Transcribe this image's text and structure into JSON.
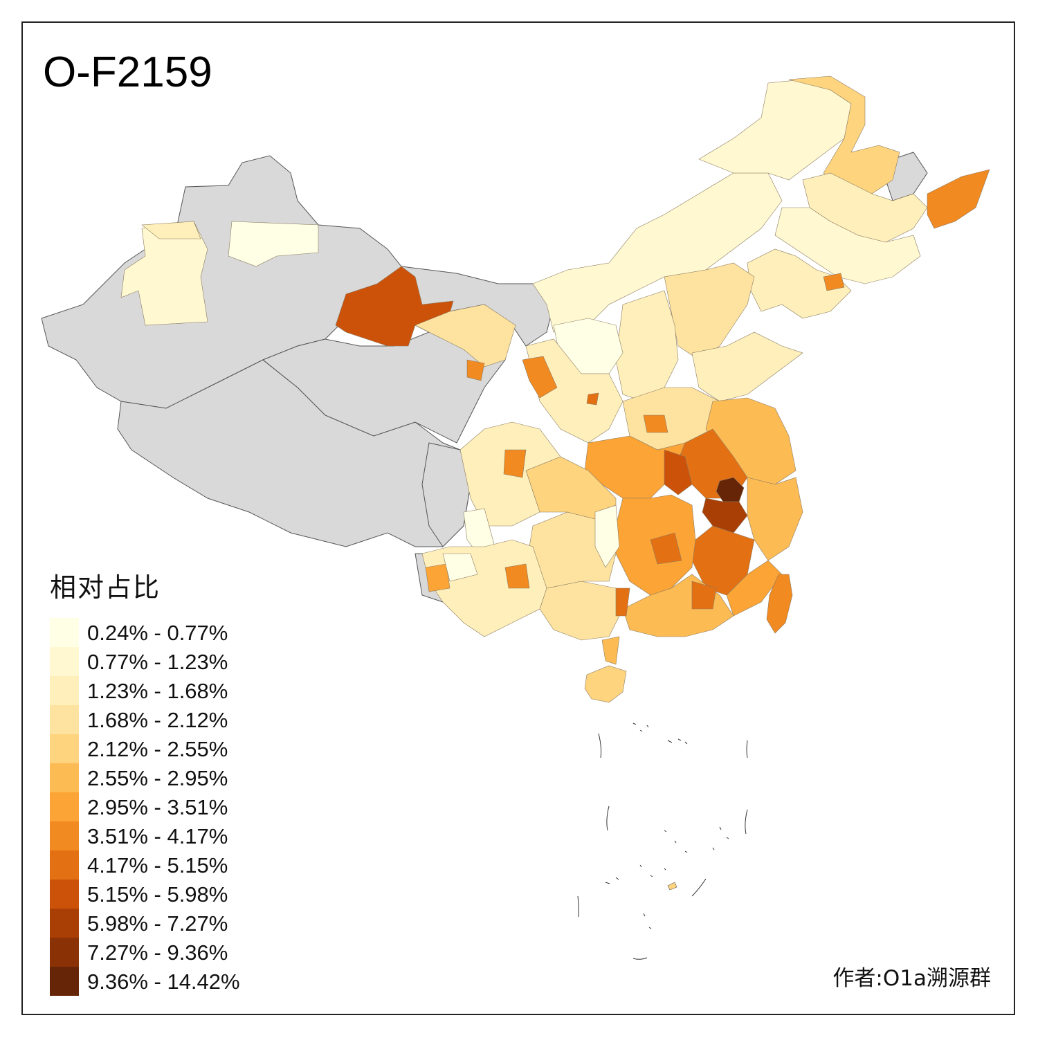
{
  "title": "O-F2159",
  "legend": {
    "title": "相对占比",
    "items": [
      {
        "label": "0.24% - 0.77%",
        "color": "#ffffe6"
      },
      {
        "label": "0.77% - 1.23%",
        "color": "#fff8d0"
      },
      {
        "label": "1.23% - 1.68%",
        "color": "#fff0bb"
      },
      {
        "label": "1.68% - 2.12%",
        "color": "#fee3a0"
      },
      {
        "label": "2.12% - 2.55%",
        "color": "#fed47f"
      },
      {
        "label": "2.55% - 2.95%",
        "color": "#fdbb54"
      },
      {
        "label": "2.95% - 3.51%",
        "color": "#fca536"
      },
      {
        "label": "3.51% - 4.17%",
        "color": "#f28a22"
      },
      {
        "label": "4.17% - 5.15%",
        "color": "#e47014"
      },
      {
        "label": "5.15% - 5.98%",
        "color": "#cc520a"
      },
      {
        "label": "5.98% - 7.27%",
        "color": "#aa3f06"
      },
      {
        "label": "7.27% - 9.36%",
        "color": "#8a3206"
      },
      {
        "label": "9.36% - 14.42%",
        "color": "#662506"
      }
    ]
  },
  "no_data_color": "#d9d9d9",
  "author": "作者:O1a溯源群"
}
